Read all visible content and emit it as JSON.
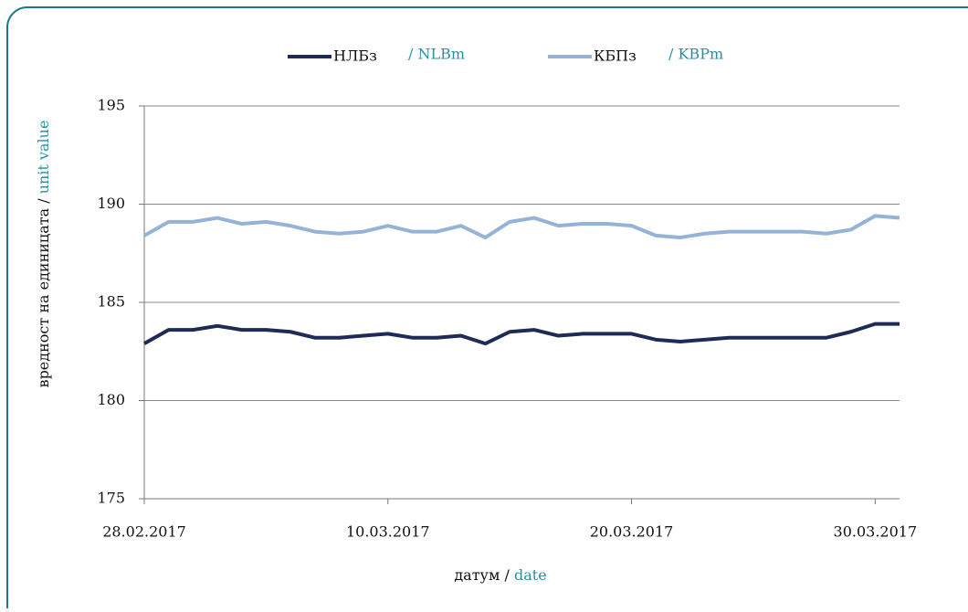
{
  "chart_data": {
    "type": "line",
    "xlabel": [
      "датум /",
      "date"
    ],
    "ylabel": [
      "вредност на единицата /",
      "unit value"
    ],
    "x": [
      "28.02.2017",
      "01.03.2017",
      "02.03.2017",
      "03.03.2017",
      "04.03.2017",
      "05.03.2017",
      "06.03.2017",
      "07.03.2017",
      "08.03.2017",
      "09.03.2017",
      "10.03.2017",
      "11.03.2017",
      "12.03.2017",
      "13.03.2017",
      "14.03.2017",
      "15.03.2017",
      "16.03.2017",
      "17.03.2017",
      "18.03.2017",
      "19.03.2017",
      "20.03.2017",
      "21.03.2017",
      "22.03.2017",
      "23.03.2017",
      "24.03.2017",
      "25.03.2017",
      "26.03.2017",
      "27.03.2017",
      "28.03.2017",
      "29.03.2017",
      "30.03.2017",
      "31.03.2017"
    ],
    "xlim": [
      "28.02.2017",
      "31.03.2017"
    ],
    "xticks": [
      "28.02.2017",
      "10.03.2017",
      "20.03.2017",
      "30.03.2017"
    ],
    "ylim": [
      175,
      195
    ],
    "yticks": [
      175,
      180,
      185,
      190,
      195
    ],
    "grid": true,
    "series": [
      {
        "name": "НЛБз",
        "name_en": "/ NLBm",
        "color": "#1f2a56",
        "values": [
          182.9,
          183.6,
          183.6,
          183.8,
          183.6,
          183.6,
          183.5,
          183.2,
          183.2,
          183.3,
          183.4,
          183.2,
          183.2,
          183.3,
          182.9,
          183.5,
          183.6,
          183.3,
          183.4,
          183.4,
          183.4,
          183.1,
          183.0,
          183.1,
          183.2,
          183.2,
          183.2,
          183.2,
          183.2,
          183.5,
          183.9,
          183.9
        ]
      },
      {
        "name": "КБПз",
        "name_en": "/ KBPm",
        "color": "#95b3d7",
        "values": [
          188.4,
          189.1,
          189.1,
          189.3,
          189.0,
          189.1,
          188.9,
          188.6,
          188.5,
          188.6,
          188.9,
          188.6,
          188.6,
          188.9,
          188.3,
          189.1,
          189.3,
          188.9,
          189.0,
          189.0,
          188.9,
          188.4,
          188.3,
          188.5,
          188.6,
          188.6,
          188.6,
          188.6,
          188.5,
          188.7,
          189.4,
          189.3
        ]
      }
    ]
  }
}
